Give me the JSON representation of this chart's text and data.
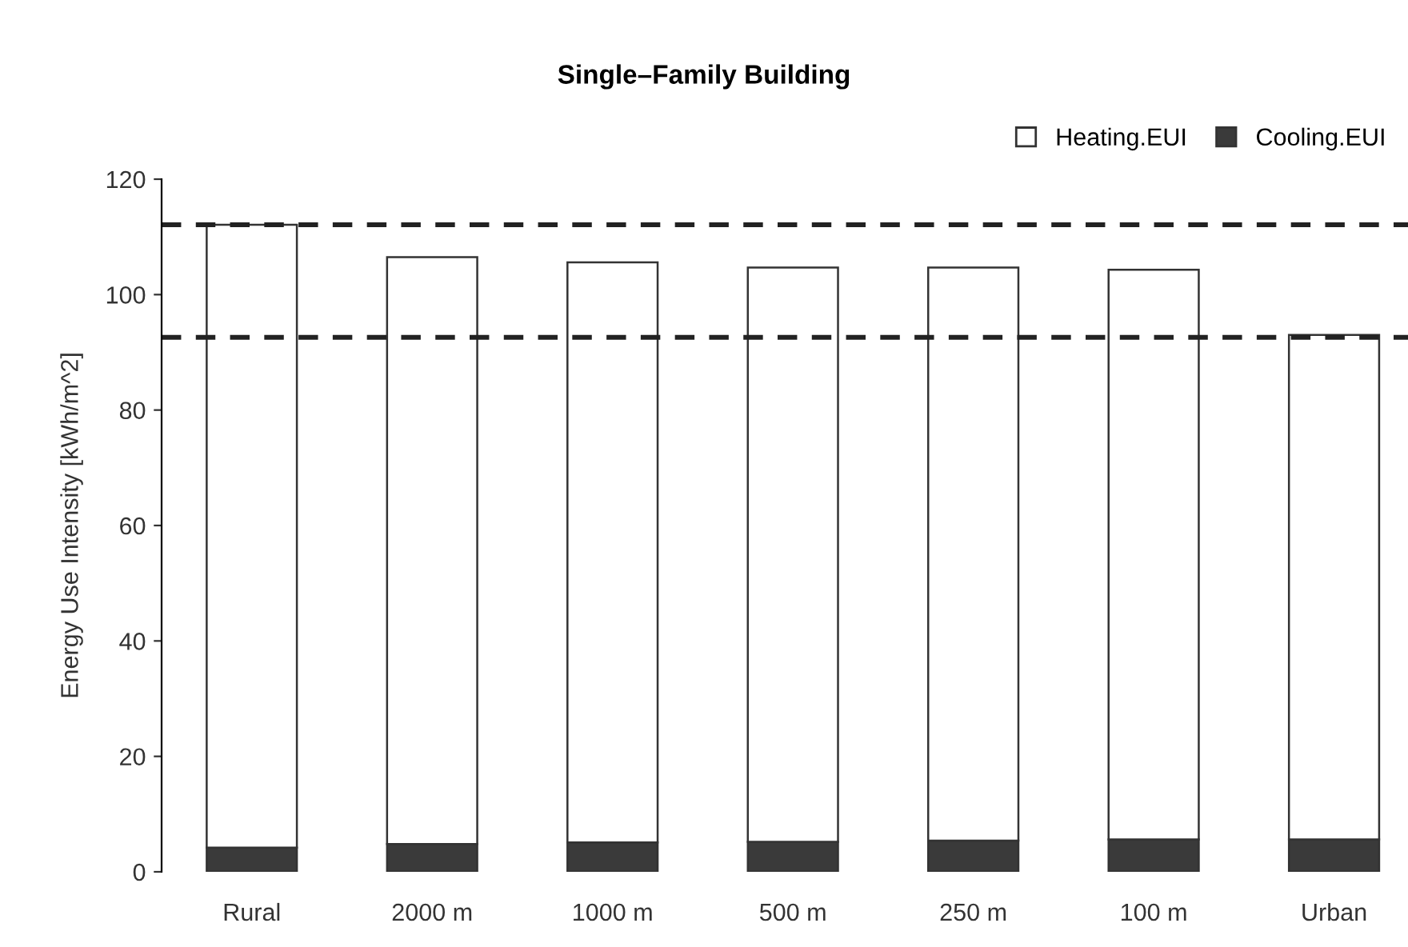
{
  "chart_data": {
    "type": "bar",
    "title": "Single–Family Building",
    "ylabel": "Energy Use Intensity [kWh/m^2]",
    "categories": [
      "Rural",
      "2000 m",
      "1000 m",
      "500 m",
      "250 m",
      "100 m",
      "Urban"
    ],
    "stacked": true,
    "series": [
      {
        "name": "Cooling.EUI",
        "color": "#3a3a3a",
        "values": [
          4.2,
          4.8,
          5.1,
          5.2,
          5.4,
          5.6,
          5.6
        ]
      },
      {
        "name": "Heating.EUI",
        "color": "#ffffff",
        "values": [
          107.9,
          101.7,
          100.5,
          99.5,
          99.3,
          98.7,
          87.4
        ]
      }
    ],
    "ylim": [
      0,
      120
    ],
    "yticks": [
      0,
      20,
      40,
      60,
      80,
      100,
      120
    ],
    "ref_lines": [
      {
        "axis": "y",
        "value": 112.1,
        "line_style": "dashed",
        "color": "#222222"
      },
      {
        "axis": "y",
        "value": 92.6,
        "line_style": "dashed",
        "color": "#222222"
      }
    ],
    "grid": false,
    "legend": "top right"
  }
}
